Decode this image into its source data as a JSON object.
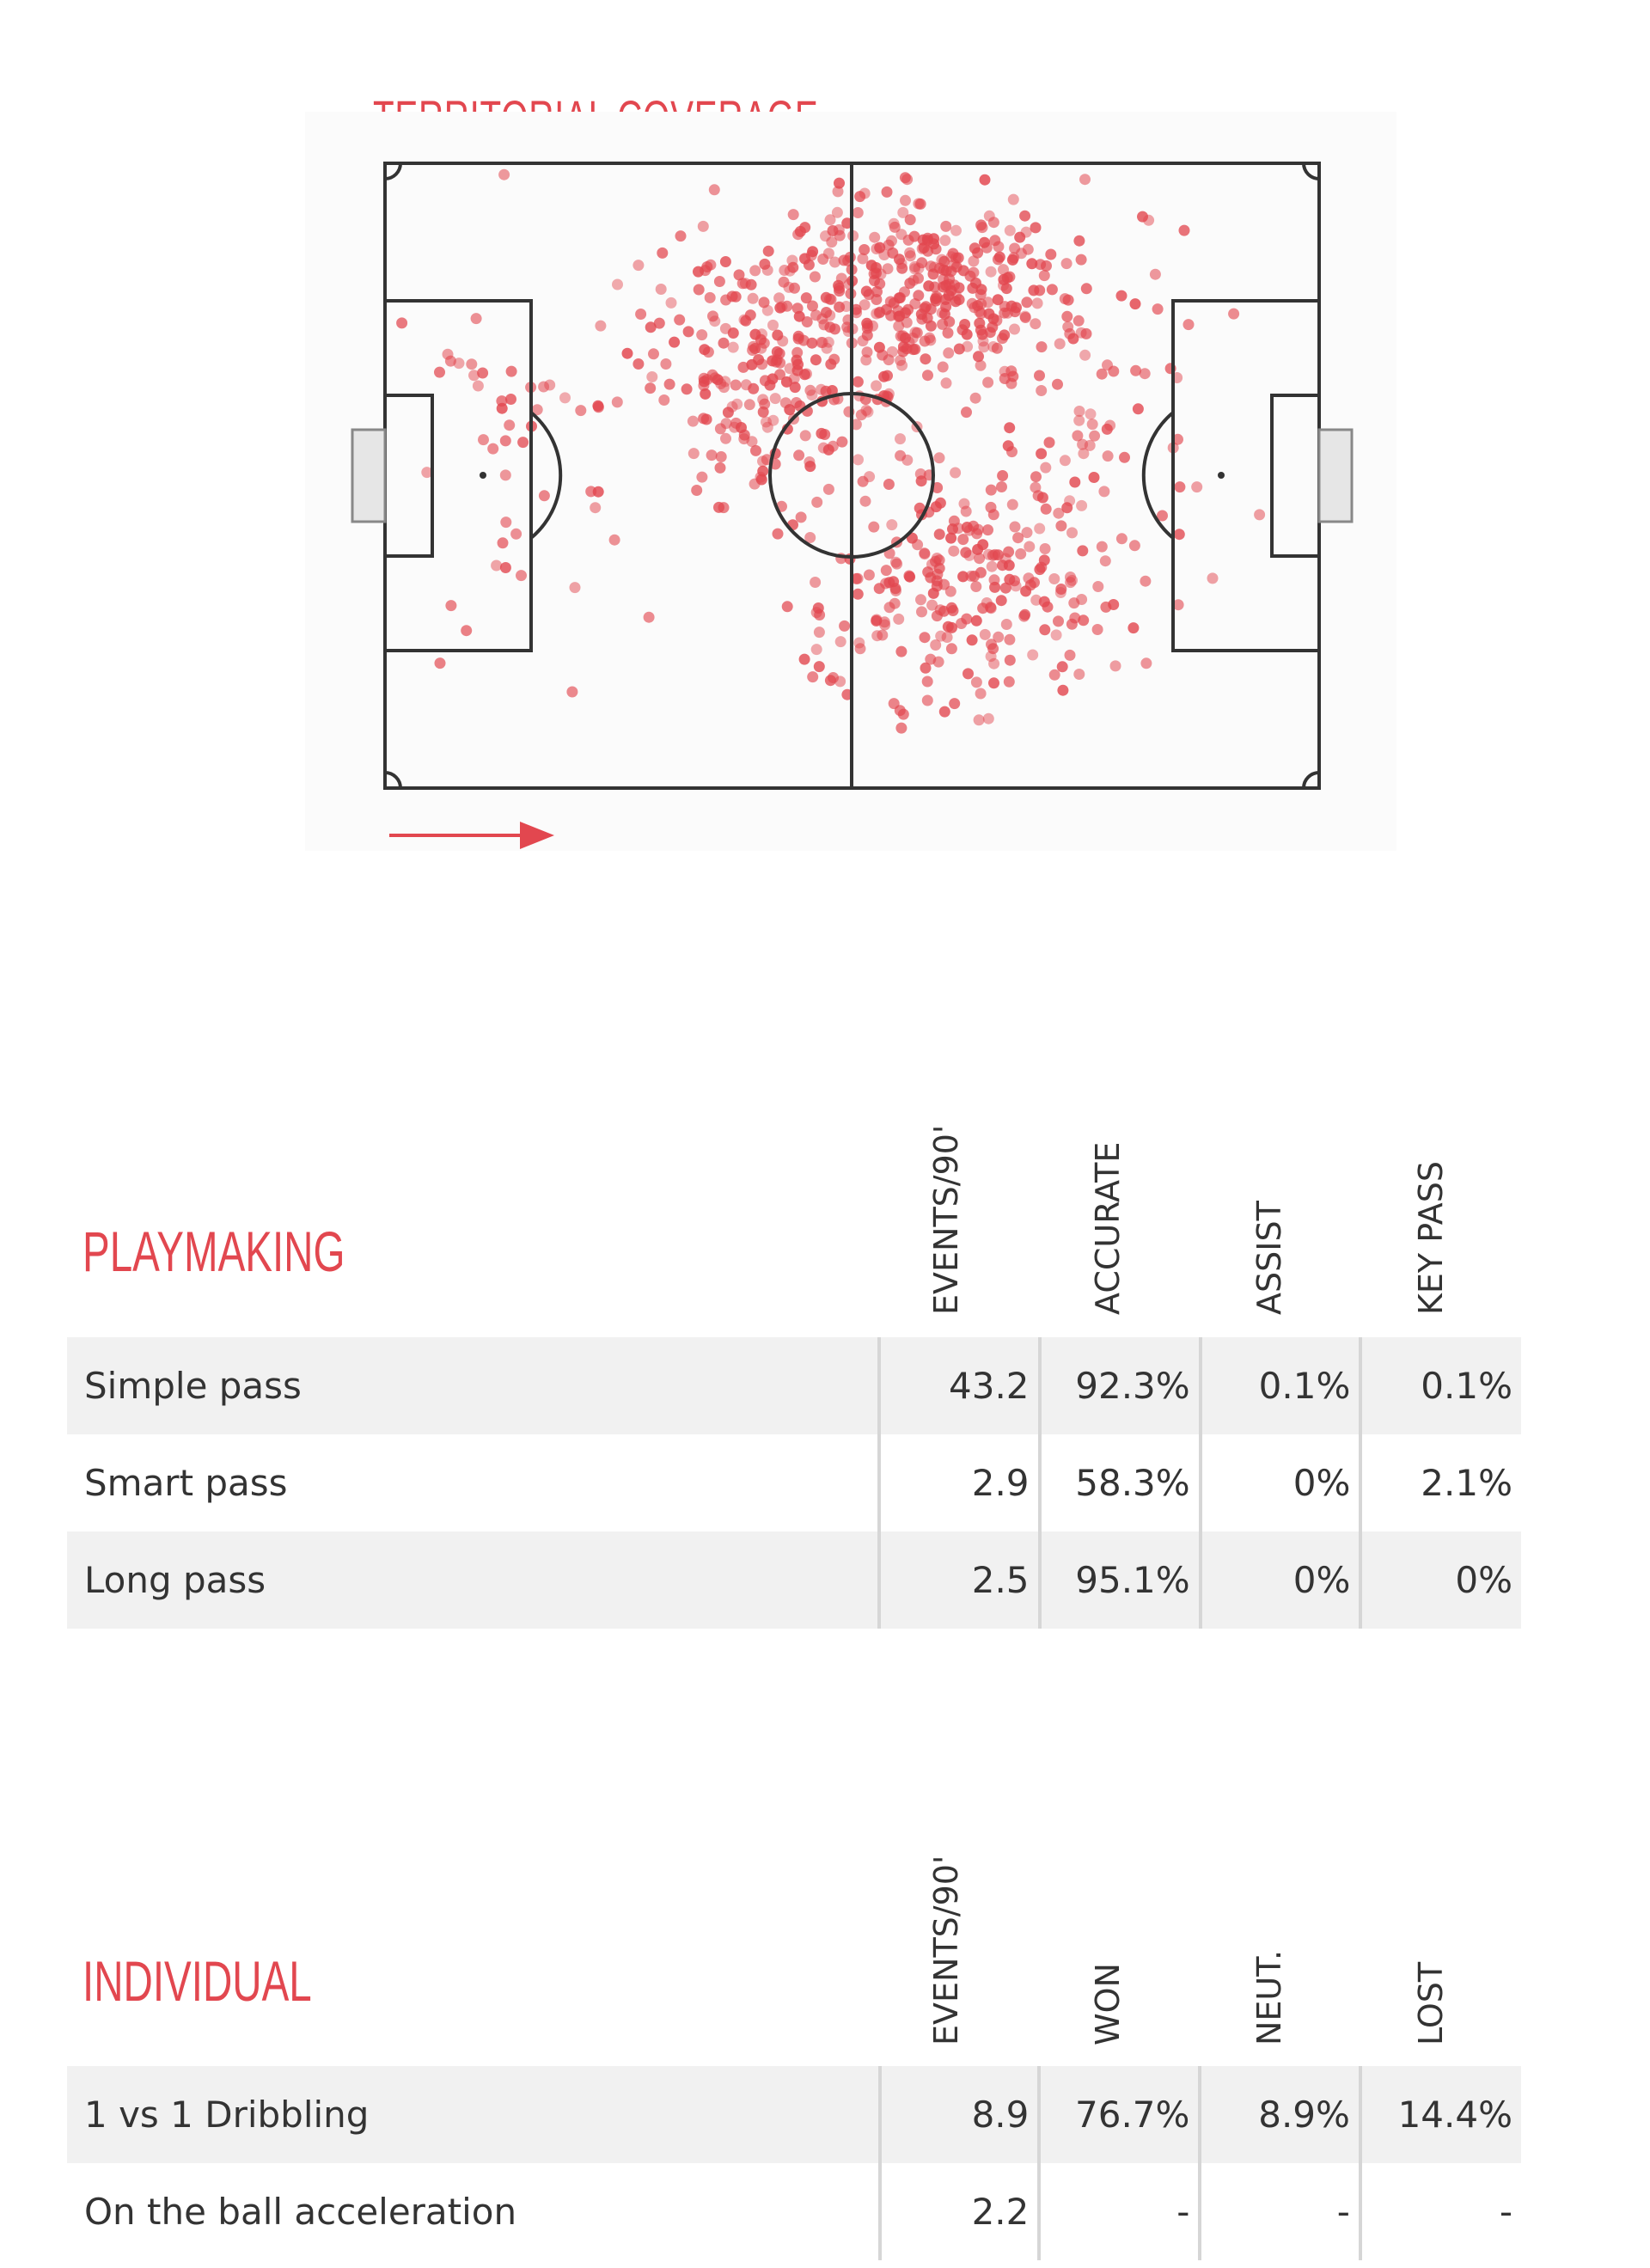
{
  "territorial": {
    "title": "TERRITORIAL COVERAGE",
    "dot_color": "#e2474f",
    "line_color": "#333333",
    "arrow_color": "#e2474f",
    "attack_direction": "right",
    "dot_count": 900
  },
  "playmaking": {
    "title": "PLAYMAKING",
    "columns": [
      "EVENTS/90'",
      "ACCURATE",
      "ASSIST",
      "KEY PASS"
    ],
    "rows": [
      {
        "label": "Simple pass",
        "values": [
          "43.2",
          "92.3%",
          "0.1%",
          "0.1%"
        ]
      },
      {
        "label": "Smart pass",
        "values": [
          "2.9",
          "58.3%",
          "0%",
          "2.1%"
        ]
      },
      {
        "label": "Long pass",
        "values": [
          "2.5",
          "95.1%",
          "0%",
          "0%"
        ]
      }
    ]
  },
  "individual": {
    "title": "INDIVIDUAL",
    "columns": [
      "EVENTS/90'",
      "WON",
      "NEUT.",
      "LOST"
    ],
    "rows": [
      {
        "label": "1 vs 1 Dribbling",
        "values": [
          "8.9",
          "76.7%",
          "8.9%",
          "14.4%"
        ]
      },
      {
        "label": "On the ball acceleration",
        "values": [
          "2.2",
          "-",
          "-",
          "-"
        ]
      }
    ]
  },
  "accent_color": "#e2474f"
}
